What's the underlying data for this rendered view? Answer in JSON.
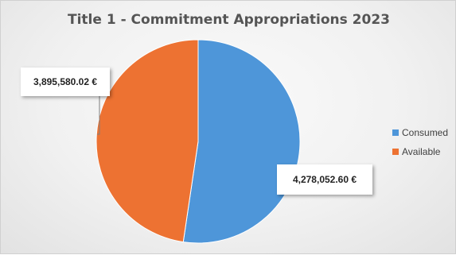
{
  "chart_data": {
    "type": "pie",
    "title": "Title 1 - Commitment Appropriations 2023",
    "slices": [
      {
        "name": "Consumed",
        "value": 4278052.6,
        "label": "4,278,052.60 €",
        "color": "#4e96d9"
      },
      {
        "name": "Available",
        "value": 3895580.02,
        "label": "3,895,580.02 €",
        "color": "#ed7232"
      }
    ],
    "legend": {
      "position": "right"
    }
  }
}
